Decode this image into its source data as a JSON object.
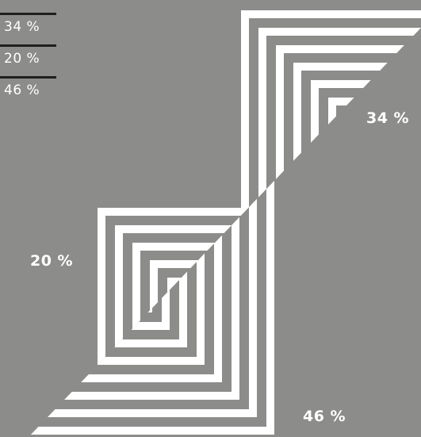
{
  "chart_data": {
    "type": "pie",
    "title": "",
    "categories": [
      "34 %",
      "20 %",
      "46 %"
    ],
    "values": [
      34,
      20,
      46
    ],
    "segment_labels": [
      "34 %",
      "20 %",
      "46 %"
    ],
    "legend": {
      "placement": "top-left",
      "entries": [
        "34 %",
        "20 %",
        "46 %"
      ]
    },
    "colors": {
      "background": "#8c8d8a",
      "stripe": "#ffffff",
      "rule": "#1f1f1f"
    }
  }
}
